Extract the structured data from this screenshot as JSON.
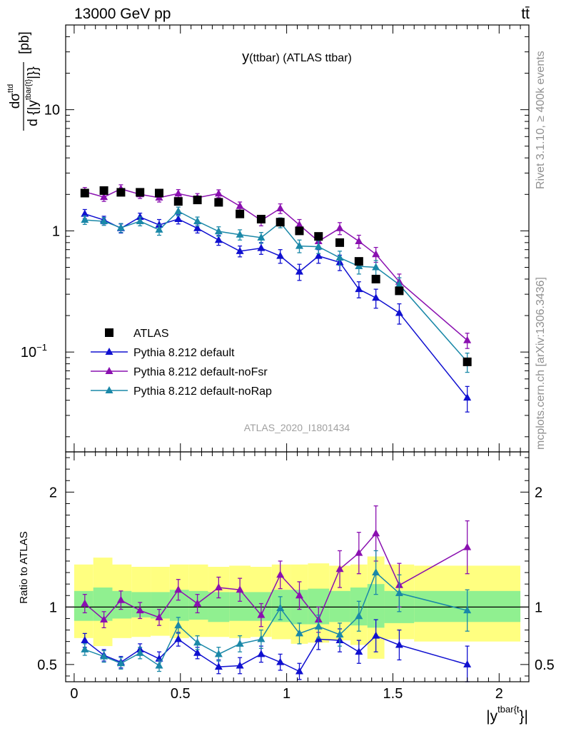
{
  "header": {
    "energy_label": "13000 GeV pp",
    "process_label": "tt̄",
    "rivet_label": "Rivet 3.1.10, ≥ 400k events",
    "mcplots_label": "mcplots.cern.ch [arXiv:1306.3436]",
    "analysis_id": "ATLAS_2020_I1801434"
  },
  "chart_data": [
    {
      "type": "line",
      "panel": "main",
      "title": "y(ttbar) (ATLAS ttbar)",
      "title_main": "y",
      "title_sub": "(ttbar) (ATLAS ttbar)",
      "ylabel": "dσ^{tt̄}/d {|y^{tbar{t}}|} [pb]",
      "ylabel_parts": {
        "num": "dσ",
        "num_sup": "ttd",
        "den": "d {|y",
        "den_sup": "tbar{t}",
        "den_end": "|}}",
        "units": "[pb]"
      },
      "yscale": "log",
      "ylim": [
        0.015,
        50
      ],
      "xlim": [
        -0.04,
        2.14
      ],
      "yticks": [
        {
          "v": 0.1,
          "base": "10",
          "exp": "−1"
        },
        {
          "v": 1,
          "base": "1",
          "exp": ""
        },
        {
          "v": 10,
          "base": "10",
          "exp": ""
        }
      ],
      "legend_position": "bottom-left",
      "x": [
        0.05,
        0.14,
        0.22,
        0.31,
        0.4,
        0.49,
        0.58,
        0.68,
        0.78,
        0.88,
        0.97,
        1.06,
        1.15,
        1.25,
        1.34,
        1.42,
        1.53,
        1.85
      ],
      "series": [
        {
          "name": "ATLAS",
          "color": "#000000",
          "marker": "square",
          "values": [
            2.05,
            2.15,
            2.08,
            2.08,
            2.05,
            1.75,
            1.8,
            1.72,
            1.38,
            1.25,
            1.18,
            1.0,
            0.9,
            0.8,
            0.56,
            0.4,
            0.32,
            0.083
          ]
        },
        {
          "name": "Pythia 8.212 default",
          "color": "#1010d0",
          "marker": "triangle",
          "values": [
            1.38,
            1.23,
            1.05,
            1.3,
            1.12,
            1.25,
            1.05,
            0.84,
            0.68,
            0.72,
            0.62,
            0.46,
            0.62,
            0.55,
            0.33,
            0.28,
            0.21,
            0.042
          ],
          "errors": [
            0.12,
            0.09,
            0.09,
            0.1,
            0.12,
            0.11,
            0.09,
            0.08,
            0.07,
            0.08,
            0.08,
            0.07,
            0.08,
            0.08,
            0.05,
            0.05,
            0.04,
            0.01
          ]
        },
        {
          "name": "Pythia 8.212 default-noFsr",
          "color": "#8a10b0",
          "marker": "triangle",
          "values": [
            2.1,
            1.9,
            2.22,
            2.0,
            1.88,
            2.03,
            1.88,
            2.03,
            1.6,
            1.22,
            1.53,
            1.12,
            0.82,
            1.05,
            0.82,
            0.64,
            0.38,
            0.125
          ],
          "errors": [
            0.18,
            0.15,
            0.18,
            0.15,
            0.15,
            0.16,
            0.15,
            0.15,
            0.13,
            0.12,
            0.14,
            0.12,
            0.1,
            0.12,
            0.1,
            0.09,
            0.06,
            0.018
          ]
        },
        {
          "name": "Pythia 8.212 default-noRap",
          "color": "#1a88a8",
          "marker": "triangle",
          "values": [
            1.23,
            1.2,
            1.06,
            1.2,
            1.02,
            1.45,
            1.2,
            0.99,
            0.93,
            0.88,
            1.17,
            0.75,
            0.74,
            0.6,
            0.51,
            0.5,
            0.36,
            0.083
          ],
          "errors": [
            0.1,
            0.09,
            0.09,
            0.1,
            0.1,
            0.12,
            0.1,
            0.09,
            0.09,
            0.09,
            0.11,
            0.09,
            0.09,
            0.08,
            0.07,
            0.07,
            0.05,
            0.015
          ]
        }
      ]
    },
    {
      "type": "line",
      "panel": "ratio",
      "xlabel": "|y^{tbar{t}}|",
      "xlabel_parts": {
        "pre": "|y",
        "sup": "tbar{t",
        "post": "}|"
      },
      "ylabel": "Ratio to ATLAS",
      "ylim": [
        0.35,
        2.35
      ],
      "xlim": [
        -0.04,
        2.14
      ],
      "yticks": [
        0.5,
        1,
        2
      ],
      "xticks": [
        0,
        0.5,
        1,
        1.5,
        2
      ],
      "xticklabels": [
        "0",
        "0.5",
        "1",
        "1.5",
        "2"
      ],
      "bins": [
        [
          0.0,
          0.09
        ],
        [
          0.09,
          0.18
        ],
        [
          0.18,
          0.27
        ],
        [
          0.27,
          0.36
        ],
        [
          0.36,
          0.45
        ],
        [
          0.45,
          0.54
        ],
        [
          0.54,
          0.63
        ],
        [
          0.63,
          0.73
        ],
        [
          0.73,
          0.83
        ],
        [
          0.83,
          0.93
        ],
        [
          0.93,
          1.02
        ],
        [
          1.02,
          1.1
        ],
        [
          1.1,
          1.2
        ],
        [
          1.2,
          1.3
        ],
        [
          1.3,
          1.38
        ],
        [
          1.38,
          1.46
        ],
        [
          1.46,
          1.6
        ],
        [
          1.6,
          2.1
        ]
      ],
      "band_stat": [
        [
          0.88,
          1.14
        ],
        [
          0.88,
          1.17
        ],
        [
          0.9,
          1.14
        ],
        [
          0.91,
          1.13
        ],
        [
          0.9,
          1.13
        ],
        [
          0.88,
          1.15
        ],
        [
          0.89,
          1.14
        ],
        [
          0.87,
          1.13
        ],
        [
          0.88,
          1.13
        ],
        [
          0.88,
          1.13
        ],
        [
          0.87,
          1.15
        ],
        [
          0.85,
          1.15
        ],
        [
          0.85,
          1.16
        ],
        [
          0.87,
          1.14
        ],
        [
          0.84,
          1.17
        ],
        [
          0.82,
          1.2
        ],
        [
          0.86,
          1.14
        ],
        [
          0.87,
          1.14
        ]
      ],
      "band_total": [
        [
          0.73,
          1.37
        ],
        [
          0.66,
          1.43
        ],
        [
          0.73,
          1.37
        ],
        [
          0.74,
          1.35
        ],
        [
          0.75,
          1.35
        ],
        [
          0.73,
          1.37
        ],
        [
          0.74,
          1.37
        ],
        [
          0.74,
          1.35
        ],
        [
          0.73,
          1.36
        ],
        [
          0.74,
          1.35
        ],
        [
          0.72,
          1.37
        ],
        [
          0.68,
          1.37
        ],
        [
          0.69,
          1.38
        ],
        [
          0.71,
          1.36
        ],
        [
          0.67,
          1.37
        ],
        [
          0.55,
          1.44
        ],
        [
          0.72,
          1.37
        ],
        [
          0.7,
          1.36
        ]
      ],
      "series": [
        {
          "name": "Pythia 8.212 default",
          "color": "#1010d0",
          "values": [
            0.71,
            0.58,
            0.52,
            0.63,
            0.55,
            0.72,
            0.6,
            0.48,
            0.49,
            0.59,
            0.52,
            0.44,
            0.72,
            0.71,
            0.61,
            0.75,
            0.67,
            0.5
          ],
          "errors": [
            0.06,
            0.05,
            0.05,
            0.05,
            0.06,
            0.06,
            0.05,
            0.06,
            0.07,
            0.07,
            0.07,
            0.07,
            0.09,
            0.1,
            0.1,
            0.14,
            0.13,
            0.16
          ]
        },
        {
          "name": "Pythia 8.212 default-noFsr",
          "color": "#8a10b0",
          "values": [
            1.03,
            0.89,
            1.06,
            0.97,
            0.91,
            1.15,
            1.03,
            1.17,
            1.15,
            0.93,
            1.28,
            1.1,
            0.89,
            1.33,
            1.47,
            1.64,
            1.19,
            1.52
          ],
          "errors": [
            0.08,
            0.07,
            0.08,
            0.07,
            0.07,
            0.09,
            0.08,
            0.09,
            0.1,
            0.1,
            0.12,
            0.12,
            0.11,
            0.16,
            0.18,
            0.24,
            0.19,
            0.23
          ]
        },
        {
          "name": "Pythia 8.212 default-noRap",
          "color": "#1a88a8",
          "values": [
            0.63,
            0.57,
            0.51,
            0.6,
            0.49,
            0.84,
            0.69,
            0.59,
            0.68,
            0.72,
            0.99,
            0.77,
            0.83,
            0.76,
            0.92,
            1.3,
            1.12,
            0.97
          ],
          "errors": [
            0.05,
            0.05,
            0.05,
            0.05,
            0.05,
            0.07,
            0.06,
            0.06,
            0.07,
            0.08,
            0.1,
            0.09,
            0.1,
            0.1,
            0.13,
            0.19,
            0.16,
            0.18
          ]
        }
      ]
    }
  ]
}
